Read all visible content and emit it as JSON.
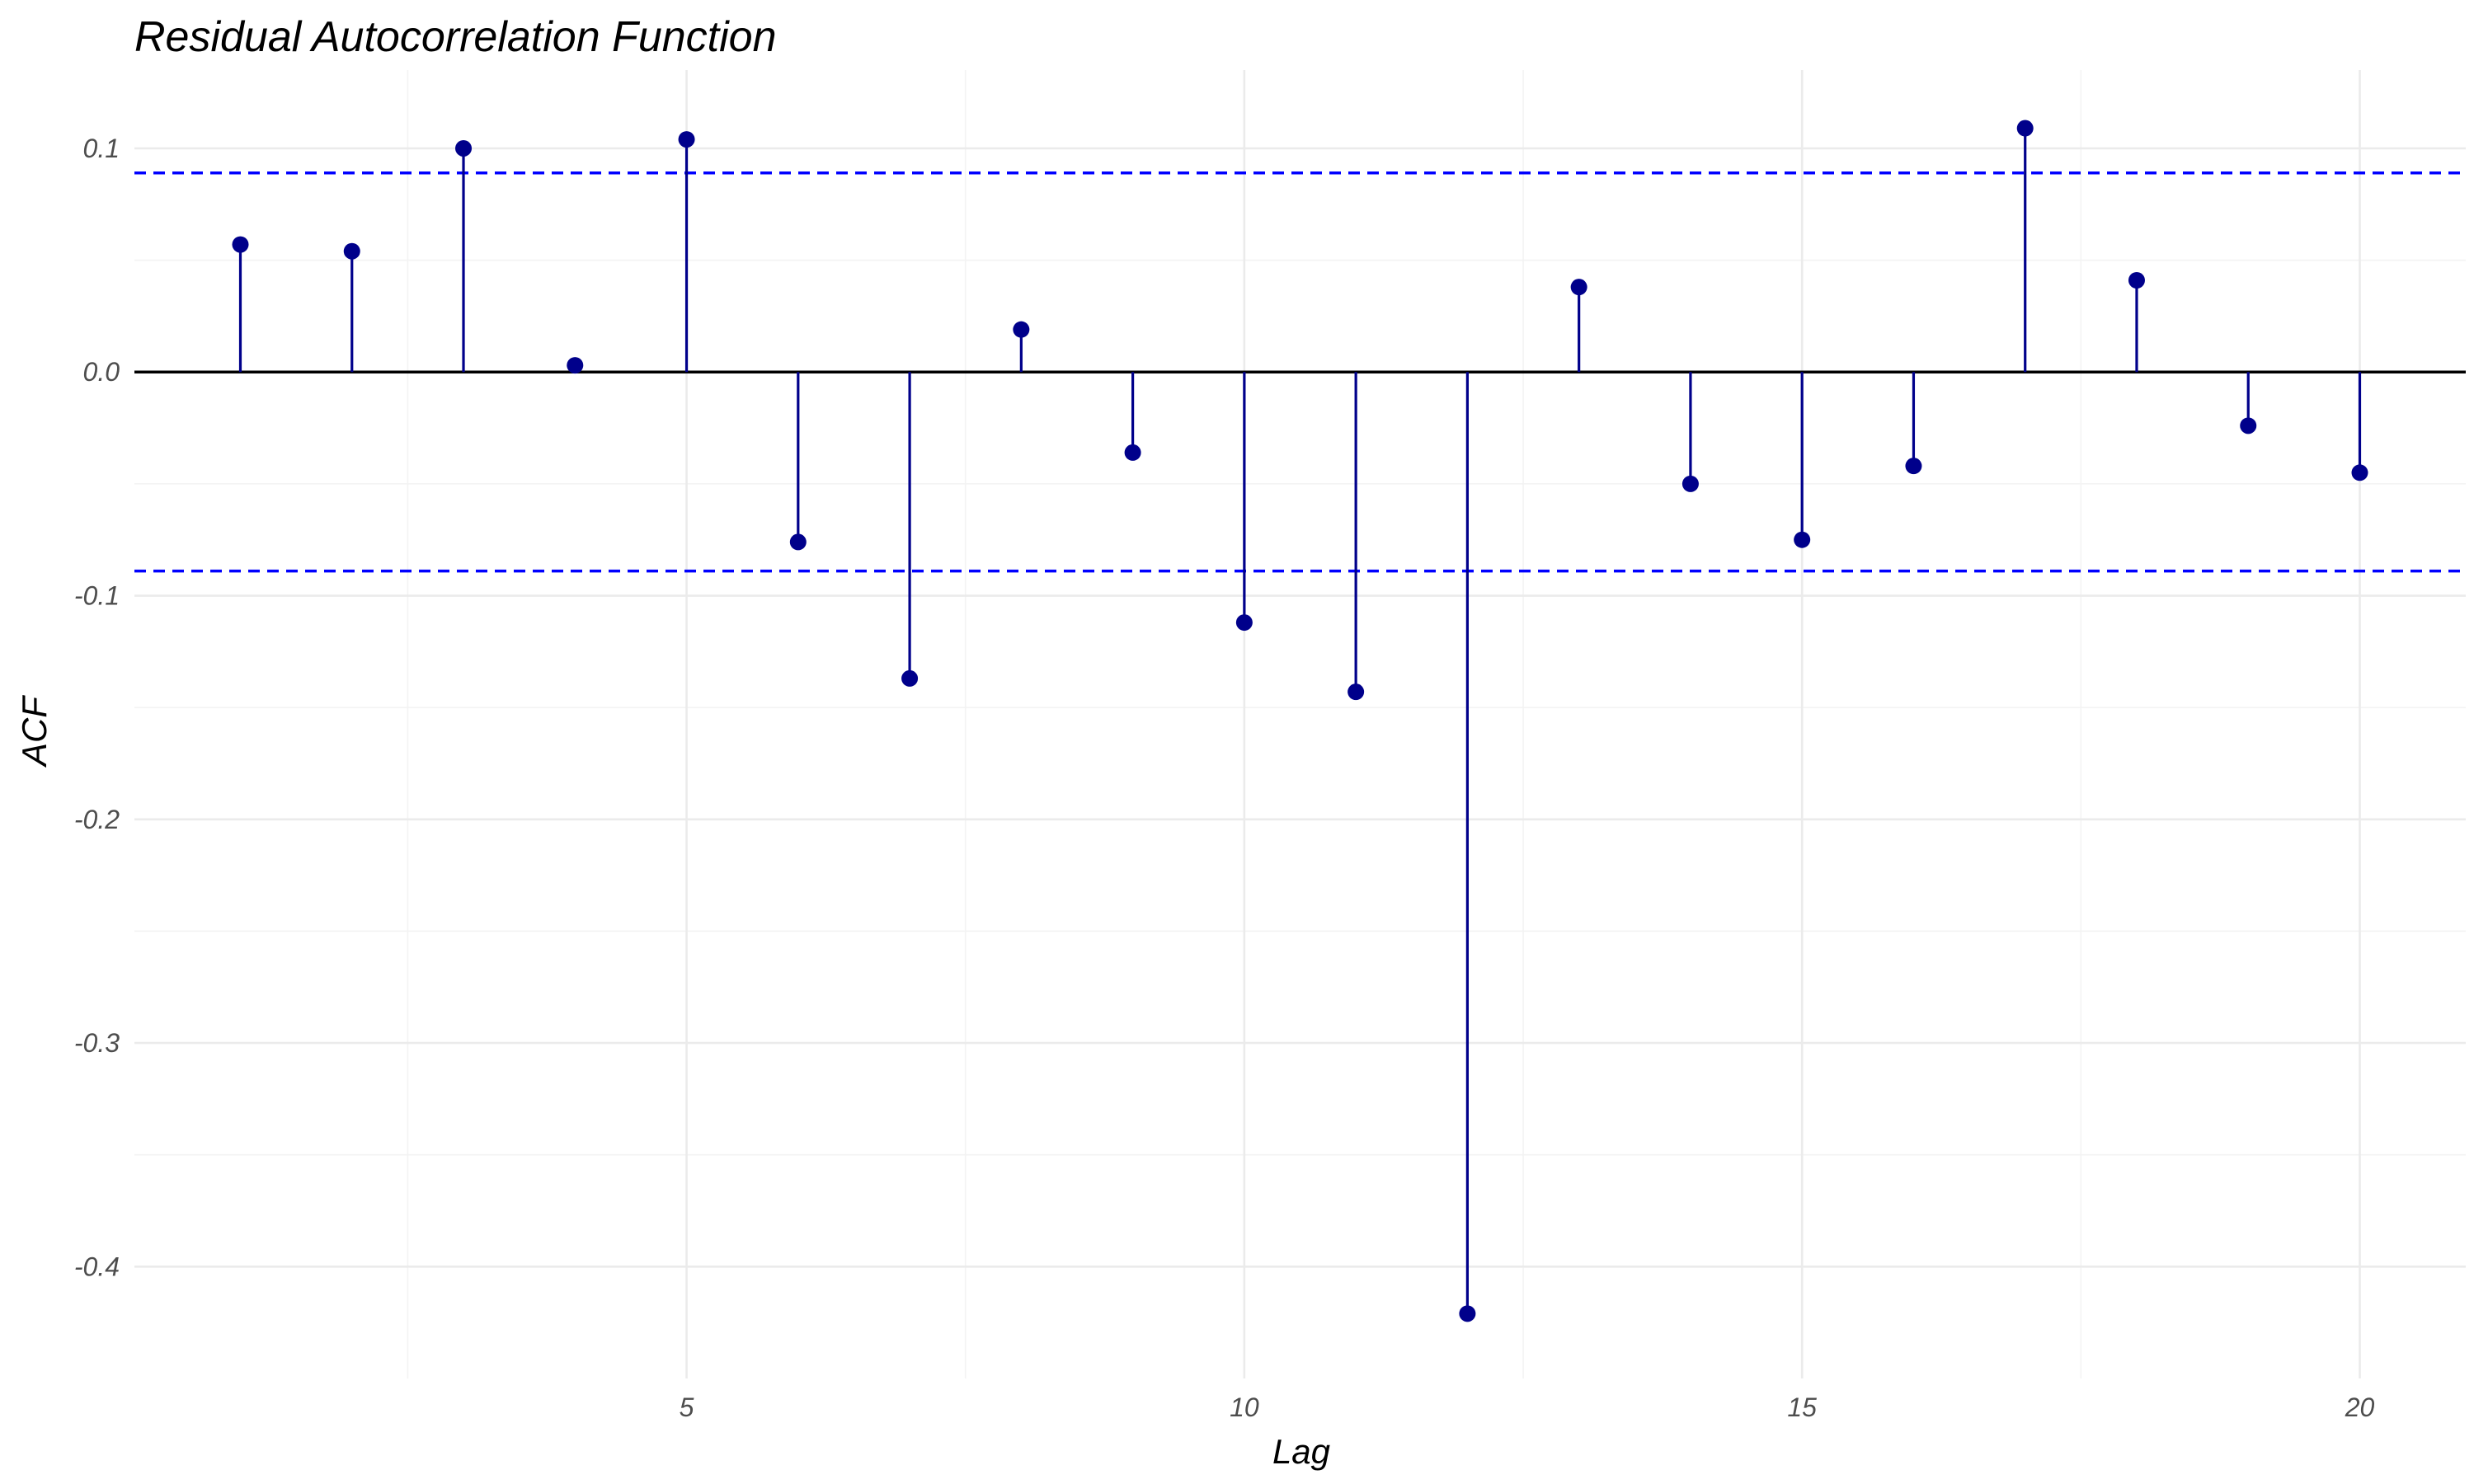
{
  "chart_data": {
    "type": "stem",
    "title": "Residual Autocorrelation Function",
    "xlabel": "Lag",
    "ylabel": "ACF",
    "xlim": [
      0.05,
      20.95
    ],
    "ylim": [
      -0.45,
      0.135
    ],
    "x_ticks": [
      5,
      10,
      15,
      20
    ],
    "x_tick_labels": [
      "5",
      "10",
      "15",
      "20"
    ],
    "x_minor_ticks": [
      2.5,
      7.5,
      12.5,
      17.5
    ],
    "y_ticks": [
      0.1,
      0.0,
      -0.1,
      -0.2,
      -0.3,
      -0.4
    ],
    "y_tick_labels": [
      "0.1",
      "0.0",
      "-0.1",
      "-0.2",
      "-0.3",
      "-0.4"
    ],
    "y_minor_ticks": [
      0.05,
      -0.05,
      -0.15,
      -0.25,
      -0.35
    ],
    "grid": true,
    "confidence_bounds": [
      0.089,
      -0.089
    ],
    "series": [
      {
        "x": [
          1,
          2,
          3,
          4,
          5,
          6,
          7,
          8,
          9,
          10,
          11,
          12,
          13,
          14,
          15,
          16,
          17,
          18,
          19,
          20
        ],
        "values": [
          0.057,
          0.054,
          0.1,
          0.003,
          0.104,
          -0.076,
          -0.137,
          0.019,
          -0.036,
          -0.112,
          -0.143,
          -0.421,
          0.038,
          -0.05,
          -0.075,
          -0.042,
          0.109,
          0.041,
          -0.024,
          -0.045
        ]
      }
    ],
    "colors": {
      "stem": "#00008b",
      "point": "#00008b",
      "bound": "#0000ff",
      "zero_line": "#000000",
      "grid": "#ebebeb"
    }
  }
}
